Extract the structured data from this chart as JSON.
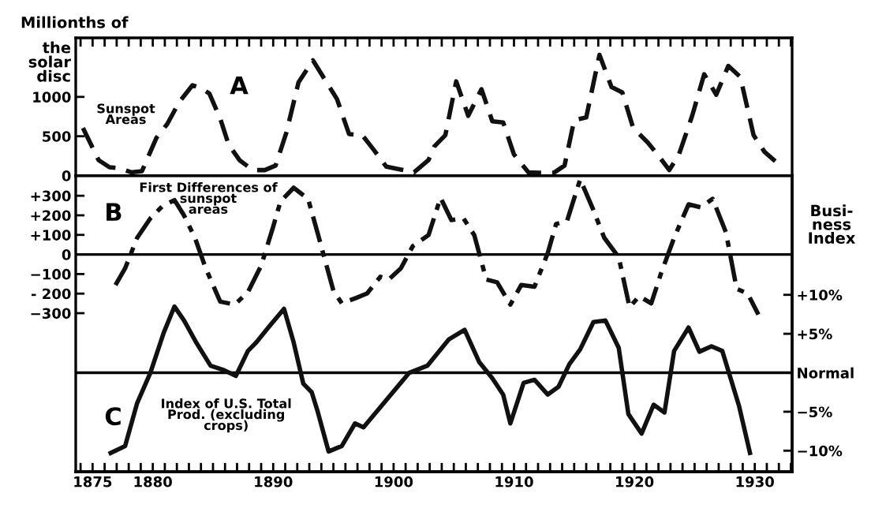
{
  "chart_data": [
    {
      "type": "line",
      "title": "A",
      "ylabel": "Millionths of\nthe\nsolar\ndisc",
      "annotations": [
        "Sunspot\nAreas"
      ],
      "tick_labels": "y",
      "xlim": [
        1873.6,
        1933.1
      ],
      "xticks": [
        1874,
        1875,
        1876,
        1877,
        1878,
        1879,
        1880,
        1881,
        1882,
        1883,
        1884,
        1885,
        1886,
        1887,
        1888,
        1889,
        1890,
        1891,
        1892,
        1893,
        1894,
        1895,
        1896,
        1897,
        1898,
        1899,
        1900,
        1901,
        1902,
        1903,
        1904,
        1905,
        1906,
        1907,
        1908,
        1909,
        1910,
        1911,
        1912,
        1913,
        1914,
        1915,
        1916,
        1917,
        1918,
        1919,
        1920,
        1921,
        1922,
        1923,
        1924,
        1925,
        1926,
        1927,
        1928,
        1929,
        1930,
        1931,
        1932,
        1933
      ],
      "ylim": [
        0,
        1750
      ],
      "yticks": [
        0,
        500,
        1000
      ],
      "line_style": "dashed",
      "series": [
        {
          "color": "#111111",
          "x": [
            1874.2,
            1875.5,
            1876.4,
            1877.3,
            1878.2,
            1879.1,
            1880.3,
            1881.2,
            1882.2,
            1883.3,
            1884.0,
            1884.7,
            1885.6,
            1886.3,
            1887.2,
            1888.3,
            1889.3,
            1890.2,
            1891.1,
            1892.1,
            1893.3,
            1894.3,
            1895.3,
            1896.3,
            1897.4,
            1898.3,
            1899.4,
            1900.6,
            1901.7,
            1902.9,
            1903.4,
            1904.3,
            1905.2,
            1906.2,
            1907.3,
            1908.2,
            1909.1,
            1910.0,
            1911.2,
            1912.1,
            1913.3,
            1914.2,
            1915.0,
            1916.0,
            1917.1,
            1918.1,
            1919.0,
            1919.9,
            1921.1,
            1922.0,
            1922.9,
            1923.7,
            1924.8,
            1925.8,
            1926.8,
            1927.8,
            1928.8,
            1929.9,
            1930.8,
            1931.7
          ],
          "values": [
            605,
            197,
            106,
            92,
            42,
            56,
            479,
            655,
            936,
            1148,
            1112,
            1042,
            725,
            394,
            197,
            70,
            70,
            127,
            549,
            1183,
            1464,
            1218,
            972,
            528,
            514,
            338,
            113,
            77,
            42,
            197,
            373,
            514,
            1197,
            760,
            1098,
            690,
            676,
            268,
            42,
            35,
            35,
            127,
            704,
            739,
            1535,
            1126,
            1056,
            605,
            422,
            253,
            70,
            268,
            760,
            1288,
            1028,
            1394,
            1253,
            514,
            303,
            183
          ]
        }
      ]
    },
    {
      "type": "line",
      "title": "B",
      "annotations": [
        "First Differences of\nsunspot\nareas"
      ],
      "tick_labels": "y",
      "xlim": [
        1873.6,
        1933.1
      ],
      "ylim": [
        -1110,
        403
      ],
      "yticks": [
        {
          "value": 300,
          "label": "+300"
        },
        {
          "value": 200,
          "label": "+200"
        },
        {
          "value": 100,
          "label": "+100"
        },
        0,
        {
          "value": -100,
          "label": "−100"
        },
        {
          "value": -200,
          "label": "- 200"
        },
        {
          "value": -300,
          "label": "−300"
        }
      ],
      "line_style": "dashdot",
      "ref_lines": [
        {
          "axis": "y",
          "value": 0
        }
      ],
      "series": [
        {
          "color": "#111111",
          "x": [
            1876.9,
            1877.7,
            1878.7,
            1879.8,
            1880.8,
            1881.8,
            1882.6,
            1883.5,
            1884.4,
            1885.6,
            1886.8,
            1887.9,
            1889.0,
            1890.0,
            1890.6,
            1891.7,
            1892.9,
            1893.8,
            1895.0,
            1895.7,
            1896.9,
            1897.8,
            1898.9,
            1899.6,
            1900.6,
            1901.6,
            1902.9,
            1903.9,
            1904.8,
            1905.8,
            1906.7,
            1907.7,
            1908.6,
            1909.7,
            1910.6,
            1911.7,
            1912.8,
            1913.5,
            1914.4,
            1915.5,
            1916.5,
            1917.5,
            1918.7,
            1919.6,
            1920.4,
            1921.4,
            1922.2,
            1923.3,
            1924.5,
            1925.5,
            1926.5,
            1927.6,
            1928.5,
            1929.4,
            1930.3
          ],
          "values": [
            -156,
            -71,
            85,
            185,
            247,
            278,
            199,
            85,
            -71,
            -241,
            -256,
            -193,
            -57,
            142,
            270,
            341,
            284,
            85,
            -185,
            -250,
            -222,
            -199,
            -114,
            -128,
            -71,
            43,
            99,
            290,
            176,
            185,
            99,
            -128,
            -142,
            -256,
            -156,
            -165,
            6,
            156,
            170,
            384,
            241,
            85,
            -14,
            -270,
            -213,
            -250,
            -99,
            85,
            256,
            241,
            284,
            114,
            -176,
            -199,
            -307
          ]
        }
      ]
    },
    {
      "type": "line",
      "title": "C",
      "y2label": "Busi-\nness\nIndex",
      "annotations": [
        "Index of U.S. Total\nProd. (excluding\ncrops)"
      ],
      "xlim": [
        1873.6,
        1933.1
      ],
      "xticks": [
        {
          "value": 1874,
          "label": null
        },
        1875,
        {
          "value": 1876,
          "label": null
        },
        {
          "value": 1877,
          "label": null
        },
        {
          "value": 1878,
          "label": null
        },
        {
          "value": 1879,
          "label": null
        },
        1880,
        {
          "value": 1881,
          "label": null
        },
        {
          "value": 1882,
          "label": null
        },
        {
          "value": 1883,
          "label": null
        },
        {
          "value": 1884,
          "label": null
        },
        {
          "value": 1885,
          "label": null
        },
        {
          "value": 1886,
          "label": null
        },
        {
          "value": 1887,
          "label": null
        },
        {
          "value": 1888,
          "label": null
        },
        {
          "value": 1889,
          "label": null
        },
        1890,
        {
          "value": 1891,
          "label": null
        },
        {
          "value": 1892,
          "label": null
        },
        {
          "value": 1893,
          "label": null
        },
        {
          "value": 1894,
          "label": null
        },
        {
          "value": 1895,
          "label": null
        },
        {
          "value": 1896,
          "label": null
        },
        {
          "value": 1897,
          "label": null
        },
        {
          "value": 1898,
          "label": null
        },
        {
          "value": 1899,
          "label": null
        },
        1900,
        {
          "value": 1901,
          "label": null
        },
        {
          "value": 1902,
          "label": null
        },
        {
          "value": 1903,
          "label": null
        },
        {
          "value": 1904,
          "label": null
        },
        {
          "value": 1905,
          "label": null
        },
        {
          "value": 1906,
          "label": null
        },
        {
          "value": 1907,
          "label": null
        },
        {
          "value": 1908,
          "label": null
        },
        {
          "value": 1909,
          "label": null
        },
        1910,
        {
          "value": 1911,
          "label": null
        },
        {
          "value": 1912,
          "label": null
        },
        {
          "value": 1913,
          "label": null
        },
        {
          "value": 1914,
          "label": null
        },
        {
          "value": 1915,
          "label": null
        },
        {
          "value": 1916,
          "label": null
        },
        {
          "value": 1917,
          "label": null
        },
        {
          "value": 1918,
          "label": null
        },
        {
          "value": 1919,
          "label": null
        },
        1920,
        {
          "value": 1921,
          "label": null
        },
        {
          "value": 1922,
          "label": null
        },
        {
          "value": 1923,
          "label": null
        },
        {
          "value": 1924,
          "label": null
        },
        {
          "value": 1925,
          "label": null
        },
        {
          "value": 1926,
          "label": null
        },
        {
          "value": 1927,
          "label": null
        },
        {
          "value": 1928,
          "label": null
        },
        {
          "value": 1929,
          "label": null
        },
        1930,
        {
          "value": 1931,
          "label": null
        },
        {
          "value": 1932,
          "label": null
        },
        {
          "value": 1933,
          "label": null
        }
      ],
      "y2lim": [
        -12.7,
        25.3
      ],
      "y2ticks": [
        {
          "value": 10,
          "label": "+10%"
        },
        {
          "value": 5,
          "label": "+5%"
        },
        {
          "value": 0,
          "label": "Normal"
        },
        {
          "value": -5,
          "label": "−5%"
        },
        {
          "value": -10,
          "label": "−10%"
        }
      ],
      "line_style": "solid",
      "ref_lines": [
        {
          "axis": "y2",
          "value": 0
        }
      ],
      "series": [
        {
          "color": "#111111",
          "axis": "y2",
          "x": [
            1876.5,
            1877.7,
            1878.7,
            1879.8,
            1880.9,
            1881.8,
            1882.6,
            1883.6,
            1884.8,
            1885.8,
            1886.9,
            1887.9,
            1888.6,
            1889.7,
            1890.9,
            1891.7,
            1892.5,
            1893.2,
            1893.7,
            1894.6,
            1895.7,
            1896.8,
            1897.5,
            1901.3,
            1902.8,
            1904.6,
            1905.9,
            1907.1,
            1908.2,
            1909.1,
            1909.7,
            1910.8,
            1911.7,
            1912.8,
            1913.7,
            1914.6,
            1915.5,
            1916.6,
            1917.6,
            1918.7,
            1919.5,
            1920.6,
            1921.6,
            1922.5,
            1923.3,
            1924.5,
            1925.4,
            1926.4,
            1927.3,
            1928.7,
            1929.6
          ],
          "values": [
            -10.3,
            -9.4,
            -3.9,
            0,
            5.1,
            8.5,
            6.7,
            3.9,
            0.9,
            0.4,
            -0.4,
            2.8,
            3.9,
            6.0,
            8.2,
            3.9,
            -1.4,
            -2.5,
            -5.0,
            -10.1,
            -9.4,
            -6.5,
            -7.0,
            0,
            0.9,
            4.3,
            5.5,
            1.4,
            -0.7,
            -2.8,
            -6.5,
            -1.3,
            -0.9,
            -2.8,
            -1.8,
            1.1,
            3.0,
            6.5,
            6.7,
            3.2,
            -5.3,
            -7.8,
            -4.1,
            -5.1,
            2.8,
            5.8,
            2.7,
            3.4,
            2.8,
            -4.3,
            -10.3
          ]
        }
      ]
    }
  ]
}
